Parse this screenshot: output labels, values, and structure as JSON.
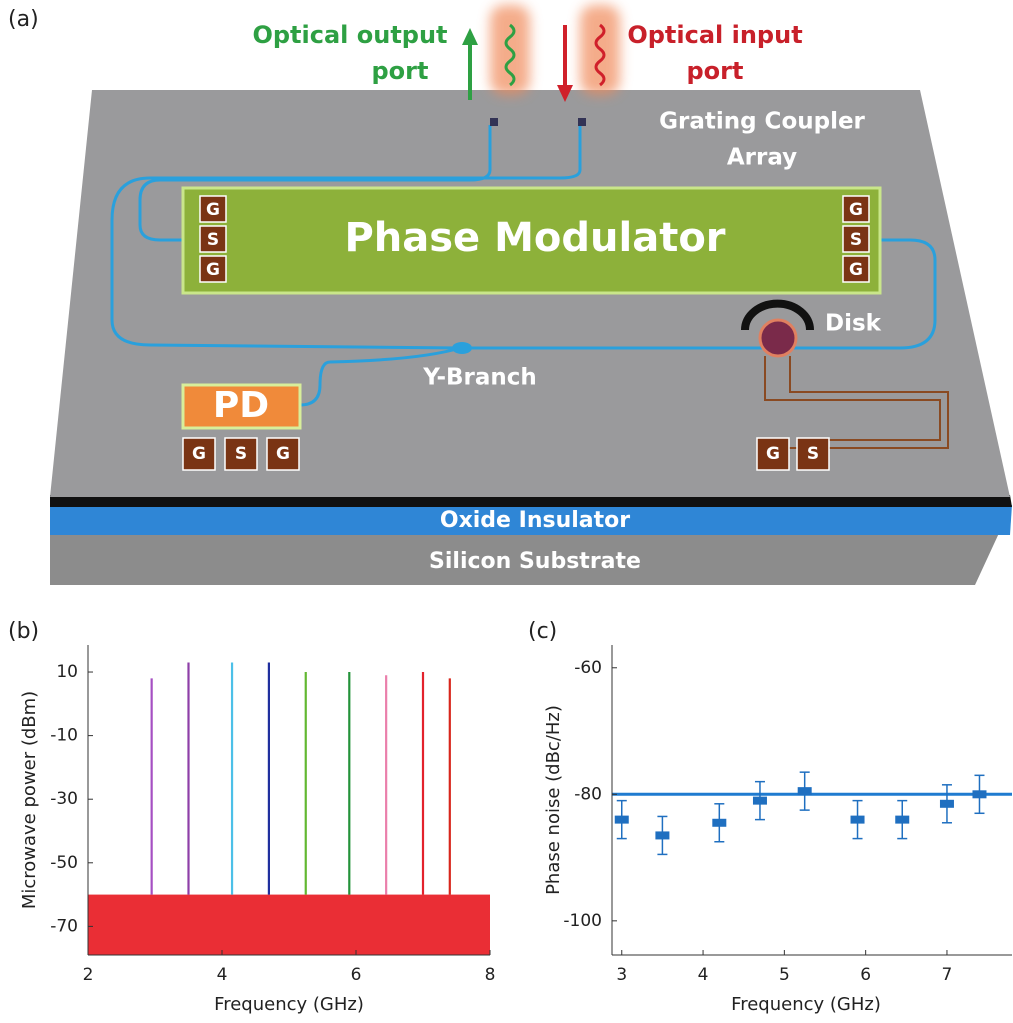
{
  "diagram": {
    "label": "(a)",
    "output_port": [
      "Optical output",
      "port"
    ],
    "input_port": [
      "Optical input",
      "port"
    ],
    "grating": [
      "Grating Coupler",
      "Array"
    ],
    "modulator": "Phase Modulator",
    "left_pads": [
      "G",
      "S",
      "G"
    ],
    "right_pads": [
      "G",
      "S",
      "G"
    ],
    "disk": "Disk",
    "y_branch": "Y-Branch",
    "pd": "PD",
    "pd_pads": [
      "G",
      "S",
      "G"
    ],
    "disk_pads": [
      "G",
      "S"
    ],
    "oxide": "Oxide Insulator",
    "substrate": "Silicon Substrate"
  },
  "chart_data": [
    {
      "type": "spectrum",
      "label": "(b)",
      "x_label": "Frequency (GHz)",
      "y_label": "Microwave power (dBm)",
      "x": [
        2.95,
        3.5,
        4.15,
        4.7,
        5.25,
        5.9,
        6.45,
        7.0,
        7.4
      ],
      "values": [
        8,
        13,
        13,
        13,
        10,
        10,
        9,
        10,
        8
      ],
      "colors": [
        "#a54fc2",
        "#8e3fa8",
        "#4cc0e8",
        "#1f2f9e",
        "#62b832",
        "#23923a",
        "#ea7fab",
        "#e3222c",
        "#d8261c"
      ],
      "noise_floor": {
        "range": [
          -79,
          -60
        ],
        "color": "#e8171f"
      },
      "xlim": [
        2,
        8
      ],
      "xticks": [
        2,
        4,
        6,
        8
      ],
      "ylim": [
        -79,
        18.5
      ],
      "yticks": [
        10,
        -10,
        -30,
        -50,
        -70
      ]
    },
    {
      "type": "errorbar",
      "label": "(c)",
      "x_label": "Frequency (GHz)",
      "y_label": "Phase noise (dBc/Hz)",
      "x": [
        3,
        3.5,
        4.2,
        4.7,
        5.25,
        5.9,
        6.45,
        7.0,
        7.4
      ],
      "values": [
        -84,
        -86.5,
        -84.5,
        -81,
        -79.5,
        -84,
        -84,
        -81.5,
        -80
      ],
      "errors": [
        3,
        3,
        3,
        3,
        3,
        3,
        3,
        3,
        3
      ],
      "color": "#1f6fc0",
      "fit_line": {
        "value": -80,
        "color": "#1f7bd0"
      },
      "xlim": [
        2.88,
        7.8
      ],
      "xticks": [
        3,
        4,
        5,
        6,
        7
      ],
      "ylim": [
        -105.4,
        -56.4
      ],
      "yticks": [
        -60,
        -80,
        -100
      ]
    }
  ]
}
